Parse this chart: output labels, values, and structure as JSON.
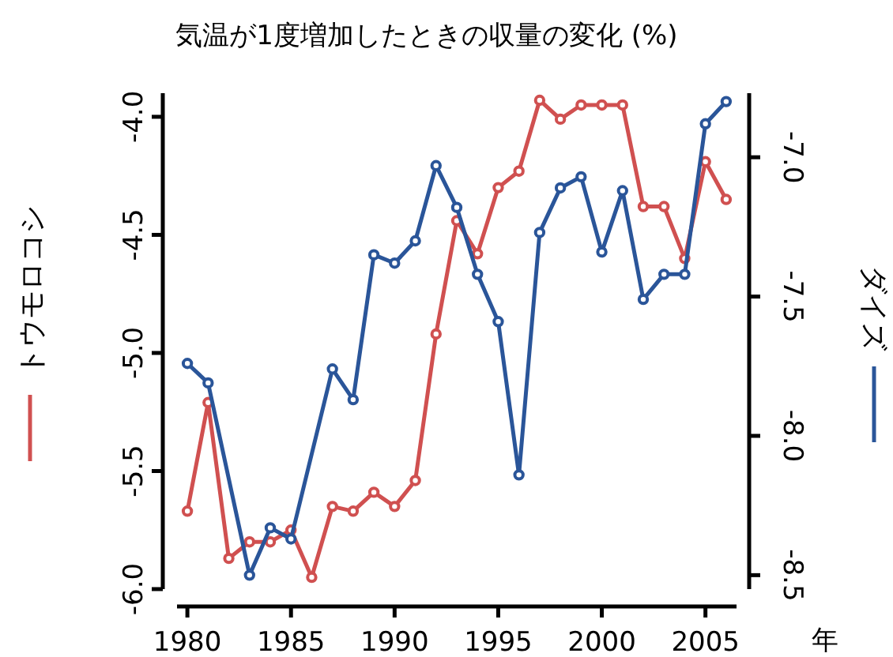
{
  "chart_data": {
    "type": "line",
    "title": "気温が1度増加したときの収量の変化 (%)",
    "xlabel": "年",
    "ylabel": "トウモロコシ",
    "y2label": "ダイズ",
    "marker": "circle",
    "line_style": "solid",
    "xlim": [
      1979.5,
      2006.5
    ],
    "xticks": [
      1980,
      1985,
      1990,
      1995,
      2000,
      2005
    ],
    "ylim": [
      -6.0,
      -3.9
    ],
    "yticks": [
      {
        "value": -6,
        "label": "-6.0"
      },
      {
        "value": -5.5,
        "label": "-5.5"
      },
      {
        "value": -5,
        "label": "-5.0"
      },
      {
        "value": -4.5,
        "label": "-4.5"
      },
      {
        "value": -4,
        "label": "-4.0"
      }
    ],
    "y2lim": [
      -8.55,
      -6.77
    ],
    "y2ticks": [
      {
        "value": -8.5,
        "label": "-8.5"
      },
      {
        "value": -8,
        "label": "-8.0"
      },
      {
        "value": -7.5,
        "label": "-7.5"
      },
      {
        "value": -7,
        "label": "-7.0"
      }
    ],
    "series": [
      {
        "color": "#d05050",
        "x": [
          1980,
          1981,
          1982,
          1983,
          1984,
          1985,
          1986,
          1987,
          1988,
          1989,
          1990,
          1991,
          1992,
          1993,
          1994,
          1995,
          1996,
          1997,
          1998,
          1999,
          2000,
          2001,
          2002,
          2003,
          2004,
          2005,
          2006
        ],
        "values": [
          -5.67,
          -5.21,
          -5.87,
          -5.8,
          -5.8,
          -5.75,
          -5.95,
          -5.65,
          -5.67,
          -5.59,
          -5.65,
          -5.54,
          -4.92,
          -4.44,
          -4.58,
          -4.3,
          -4.23,
          -3.93,
          -4.01,
          -3.95,
          -3.95,
          -3.95,
          -4.38,
          -4.38,
          -4.6,
          -4.19,
          -4.35
        ]
      },
      {
        "color": "#2a5599",
        "axis": "y2",
        "x": [
          1980,
          1981,
          1983,
          1984,
          1985,
          1987,
          1988,
          1989,
          1990,
          1991,
          1992,
          1993,
          1994,
          1995,
          1996,
          1997,
          1998,
          1999,
          2000,
          2001,
          2002,
          2003,
          2004,
          2005,
          2006
        ],
        "values": [
          -7.74,
          -7.81,
          -8.5,
          -8.33,
          -8.37,
          -7.76,
          -7.87,
          -7.35,
          -7.38,
          -7.3,
          -7.03,
          -7.18,
          -7.42,
          -7.59,
          -8.14,
          -7.27,
          -7.11,
          -7.07,
          -7.34,
          -7.12,
          -7.51,
          -7.42,
          -7.42,
          -6.88,
          -6.8
        ]
      }
    ]
  }
}
